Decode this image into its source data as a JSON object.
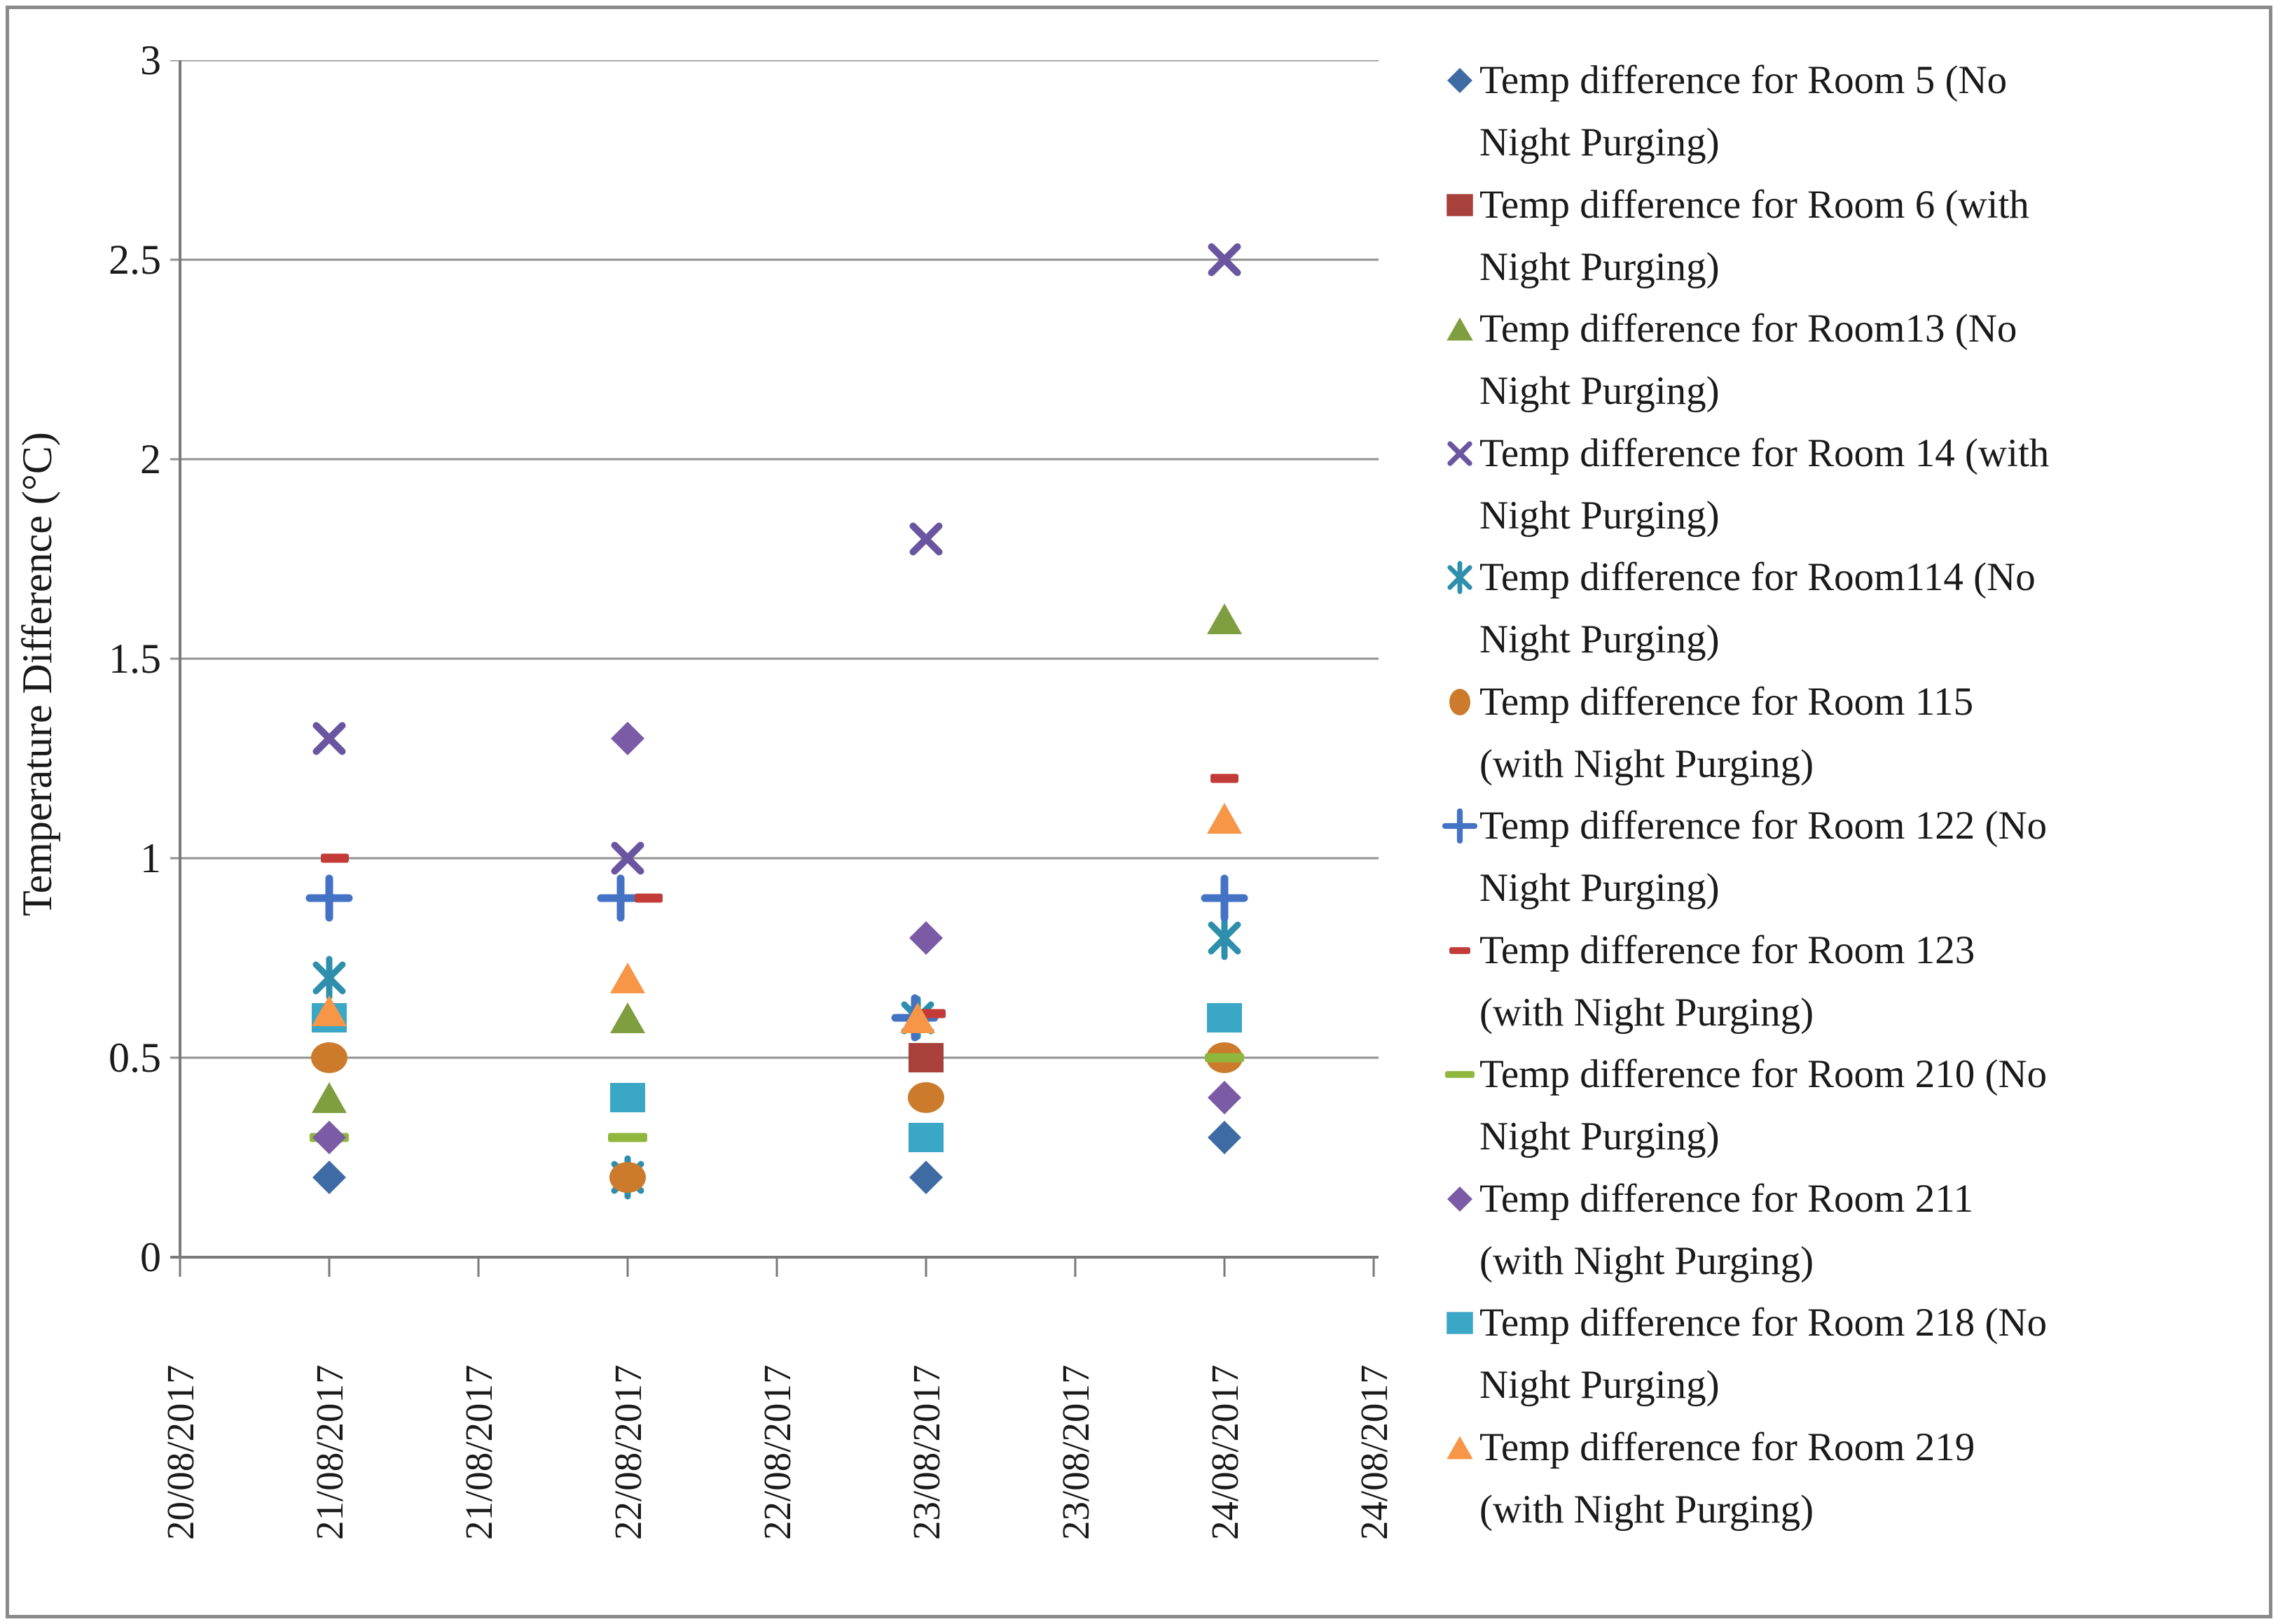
{
  "chart_data": {
    "type": "scatter",
    "title": "",
    "xlabel": "",
    "ylabel": "Temperature Difference (°C)",
    "ylim": [
      0,
      3
    ],
    "grid": "horizontal",
    "legend_position": "right",
    "y_ticks": [
      3,
      2.5,
      2,
      1.5,
      1,
      0.5,
      0
    ],
    "y_tick_labels": [
      "3",
      "2.5",
      "2",
      "1.5",
      "1",
      "0.5",
      "0"
    ],
    "x_tick_labels": [
      "20/08/2017",
      "21/08/2017",
      "21/08/2017",
      "22/08/2017",
      "22/08/2017",
      "23/08/2017",
      "23/08/2017",
      "24/08/2017",
      "24/08/2017"
    ],
    "data_dates": [
      "21/08/2017",
      "22/08/2017",
      "23/08/2017",
      "24/08/2017"
    ],
    "series": [
      {
        "id": "room5",
        "name": "Temp difference  for Room 5 (No Night Purging)",
        "legend_line1": "Temp difference  for Room 5 (No",
        "legend_line2": "Night Purging)",
        "marker": "diamond",
        "color": "#3F6BA5",
        "values": [
          0.2,
          null,
          0.2,
          0.3
        ]
      },
      {
        "id": "room6",
        "name": "Temp difference  for Room 6 (with Night Purging)",
        "legend_line1": "Temp difference  for Room 6 (with",
        "legend_line2": "Night Purging)",
        "marker": "square",
        "color": "#A8403C",
        "values": [
          null,
          null,
          0.5,
          null
        ]
      },
      {
        "id": "room13",
        "name": "Temp difference for Room13 (No Night Purging)",
        "legend_line1": "Temp difference for Room13 (No",
        "legend_line2": "Night Purging)",
        "marker": "triangle",
        "color": "#7F9E3F",
        "values": [
          0.4,
          0.6,
          null,
          1.6
        ]
      },
      {
        "id": "room14",
        "name": "Temp difference  for Room 14 (with Night Purging)",
        "legend_line1": "Temp difference  for Room 14 (with",
        "legend_line2": "Night Purging)",
        "marker": "x",
        "color": "#6A55A1",
        "values": [
          1.3,
          1.0,
          1.8,
          2.5
        ]
      },
      {
        "id": "room114",
        "name": "Temp difference for Room114 (No Night Purging)",
        "legend_line1": "Temp difference for Room114 (No",
        "legend_line2": "Night Purging)",
        "marker": "asterisk",
        "color": "#2E8FAC",
        "values": [
          0.7,
          0.2,
          0.6,
          0.8
        ]
      },
      {
        "id": "room115",
        "name": "Temp difference  for Room 115 (with Night Purging)",
        "legend_line1": "Temp difference  for Room 115",
        "legend_line2": "(with Night Purging)",
        "marker": "circle",
        "color": "#CB7B2B",
        "values": [
          0.5,
          0.2,
          0.4,
          0.5
        ]
      },
      {
        "id": "room122",
        "name": "Temp difference for Room 122 (No Night Purging)",
        "legend_line1": "Temp difference for Room 122 (No",
        "legend_line2": "Night Purging)",
        "marker": "plus",
        "color": "#4472C4",
        "values": [
          0.9,
          0.9,
          0.6,
          0.9
        ]
      },
      {
        "id": "room123",
        "name": "Temp difference  for Room 123 (with Night Purging)",
        "legend_line1": "Temp difference  for Room 123",
        "legend_line2": "(with Night Purging)",
        "marker": "dash",
        "color": "#C23B38",
        "values": [
          1.0,
          0.9,
          0.6,
          1.2
        ]
      },
      {
        "id": "room210",
        "name": "Temp difference for Room 210 (No Night Purging)",
        "legend_line1": "Temp difference for Room 210 (No",
        "legend_line2": "Night Purging)",
        "marker": "dash",
        "color": "#8FB73E",
        "values": [
          0.3,
          0.3,
          null,
          0.5
        ]
      },
      {
        "id": "room211",
        "name": "Temp difference  for Room 211 (with Night Purging)",
        "legend_line1": "Temp difference  for Room 211",
        "legend_line2": "(with Night Purging)",
        "marker": "diamond",
        "color": "#7B5BA5",
        "values": [
          0.3,
          1.3,
          0.8,
          0.4
        ]
      },
      {
        "id": "room218",
        "name": "Temp difference for Room 218 (No Night Purging)",
        "legend_line1": "Temp difference for Room 218 (No",
        "legend_line2": "Night Purging)",
        "marker": "square",
        "color": "#3BA7C6",
        "values": [
          0.6,
          0.4,
          0.3,
          0.6
        ]
      },
      {
        "id": "room219",
        "name": "Temp difference  for Room 219 (with Night Purging)",
        "legend_line1": "Temp difference  for Room 219",
        "legend_line2": "(with Night Purging)",
        "marker": "triangle",
        "color": "#F79646",
        "values": [
          0.6,
          0.7,
          0.6,
          1.1
        ]
      }
    ],
    "colors": {
      "gridline": "#919191",
      "axis": "#7A7A7A",
      "text": "#1A1A1A",
      "frame_border": "#8A8A8A"
    }
  }
}
